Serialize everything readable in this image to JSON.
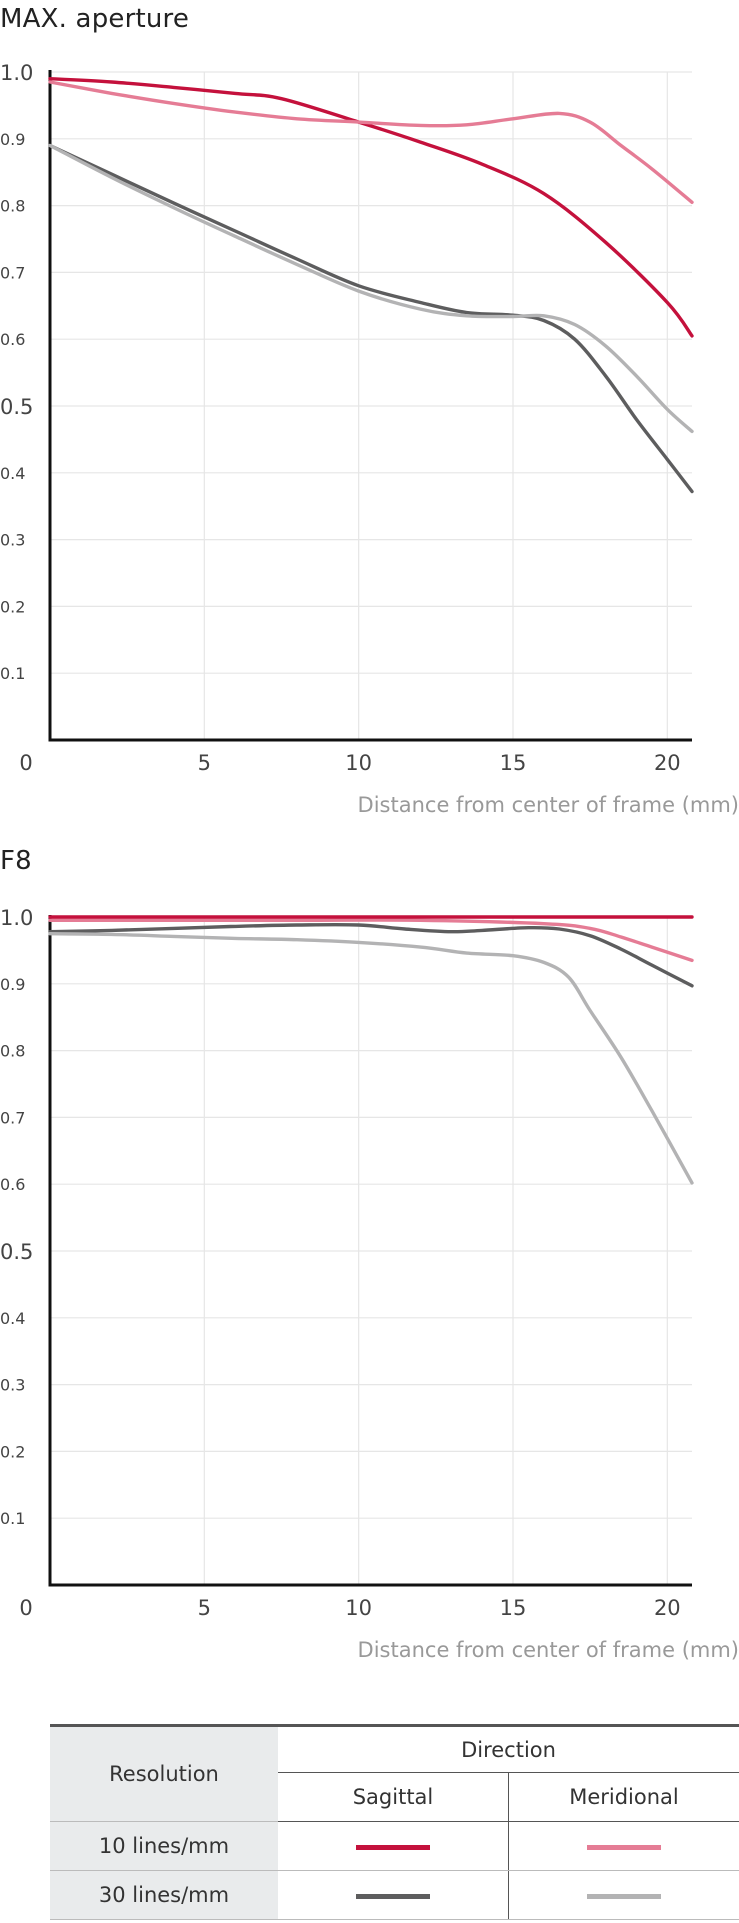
{
  "chart_data": [
    {
      "type": "line",
      "title": "MAX. aperture",
      "xlabel": "Distance from center of frame (mm)",
      "ylabel": "",
      "xlim": [
        0,
        20.8
      ],
      "ylim": [
        0,
        1.0
      ],
      "xticks": [
        0,
        5,
        10,
        15,
        20
      ],
      "yticks": [
        0.1,
        0.2,
        0.3,
        0.4,
        0.5,
        0.6,
        0.7,
        0.8,
        0.9,
        1.0
      ],
      "xtick_labels": [
        "0",
        "5",
        "10",
        "15",
        "20"
      ],
      "ytick_labels": [
        "0.1",
        "0.2",
        "0.3",
        "0.4",
        "0.5",
        "0.6",
        "0.7",
        "0.8",
        "0.9",
        "1.0"
      ],
      "grid": true,
      "series": [
        {
          "key": "sag10",
          "color": "#c4113c",
          "x": [
            0,
            2,
            4,
            6,
            7.5,
            10,
            12,
            14,
            16,
            18,
            20,
            20.8
          ],
          "y": [
            0.99,
            0.985,
            0.977,
            0.968,
            0.96,
            0.925,
            0.895,
            0.862,
            0.818,
            0.745,
            0.655,
            0.605
          ]
        },
        {
          "key": "mer10",
          "color": "#e57c95",
          "x": [
            0,
            2,
            4,
            6,
            8,
            10,
            12,
            13.5,
            15,
            16.5,
            17.5,
            18.5,
            19.5,
            20.8
          ],
          "y": [
            0.985,
            0.968,
            0.953,
            0.94,
            0.93,
            0.925,
            0.92,
            0.921,
            0.93,
            0.938,
            0.925,
            0.89,
            0.855,
            0.805
          ]
        },
        {
          "key": "sag30",
          "color": "#5d5d5e",
          "x": [
            0,
            2,
            4,
            6,
            8,
            10,
            12,
            13.5,
            15,
            16,
            17,
            18,
            19,
            20,
            20.8
          ],
          "y": [
            0.89,
            0.847,
            0.804,
            0.762,
            0.72,
            0.68,
            0.655,
            0.64,
            0.636,
            0.628,
            0.6,
            0.545,
            0.48,
            0.42,
            0.372
          ]
        },
        {
          "key": "mer30",
          "color": "#b3b3b4",
          "x": [
            0,
            2,
            4,
            6,
            8,
            10,
            12,
            13.5,
            15,
            16,
            17,
            18,
            19,
            20,
            20.8
          ],
          "y": [
            0.89,
            0.842,
            0.797,
            0.754,
            0.712,
            0.672,
            0.645,
            0.635,
            0.634,
            0.635,
            0.622,
            0.59,
            0.545,
            0.495,
            0.462
          ]
        }
      ]
    },
    {
      "type": "line",
      "title": "F8",
      "xlabel": "Distance from center of frame (mm)",
      "ylabel": "",
      "xlim": [
        0,
        20.8
      ],
      "ylim": [
        0,
        1.0
      ],
      "xticks": [
        0,
        5,
        10,
        15,
        20
      ],
      "yticks": [
        0.1,
        0.2,
        0.3,
        0.4,
        0.5,
        0.6,
        0.7,
        0.8,
        0.9,
        1.0
      ],
      "xtick_labels": [
        "0",
        "5",
        "10",
        "15",
        "20"
      ],
      "ytick_labels": [
        "0.1",
        "0.2",
        "0.3",
        "0.4",
        "0.5",
        "0.6",
        "0.7",
        "0.8",
        "0.9",
        "1.0"
      ],
      "grid": true,
      "series": [
        {
          "key": "mer10",
          "color": "#e57c95",
          "x": [
            0,
            4,
            8,
            12,
            16,
            17.5,
            18.5,
            19.5,
            20.8
          ],
          "y": [
            0.995,
            0.995,
            0.995,
            0.995,
            0.99,
            0.983,
            0.97,
            0.955,
            0.935
          ]
        },
        {
          "key": "sag30",
          "color": "#5d5d5e",
          "x": [
            0,
            2,
            4,
            6,
            8,
            10,
            11.5,
            13,
            14,
            15.5,
            16.5,
            17.5,
            18.5,
            19.5,
            20.8
          ],
          "y": [
            0.978,
            0.98,
            0.983,
            0.986,
            0.988,
            0.988,
            0.982,
            0.978,
            0.98,
            0.984,
            0.982,
            0.972,
            0.952,
            0.928,
            0.897
          ]
        },
        {
          "key": "mer30",
          "color": "#b3b3b4",
          "x": [
            0,
            2,
            4,
            6,
            8,
            10,
            12,
            13.5,
            15,
            16,
            16.8,
            17.5,
            18.5,
            19.5,
            20.8
          ],
          "y": [
            0.975,
            0.974,
            0.971,
            0.968,
            0.966,
            0.962,
            0.955,
            0.946,
            0.942,
            0.932,
            0.91,
            0.86,
            0.79,
            0.71,
            0.602
          ]
        },
        {
          "key": "sag10",
          "color": "#c4113c",
          "x": [
            0,
            5,
            10,
            15,
            20,
            20.8
          ],
          "y": [
            1.0,
            1.0,
            1.0,
            1.0,
            1.0,
            1.0
          ]
        }
      ]
    }
  ],
  "legend": {
    "resolution_label": "Resolution",
    "direction_label": "Direction",
    "sagittal_label": "Sagittal",
    "meridional_label": "Meridional",
    "rows": [
      {
        "label": "10 lines/mm",
        "sagittal_color": "#c4113c",
        "meridional_color": "#e57c95"
      },
      {
        "label": "30 lines/mm",
        "sagittal_color": "#5d5d5e",
        "meridional_color": "#b3b3b4"
      }
    ]
  }
}
